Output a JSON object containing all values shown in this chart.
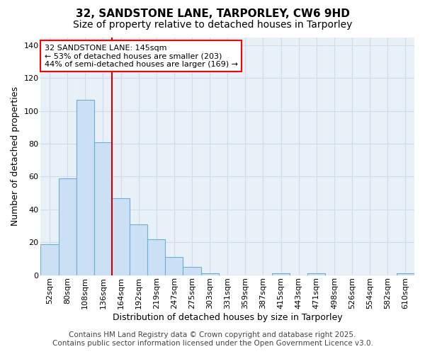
{
  "title": "32, SANDSTONE LANE, TARPORLEY, CW6 9HD",
  "subtitle": "Size of property relative to detached houses in Tarporley",
  "xlabel": "Distribution of detached houses by size in Tarporley",
  "ylabel": "Number of detached properties",
  "categories": [
    "52sqm",
    "80sqm",
    "108sqm",
    "136sqm",
    "164sqm",
    "192sqm",
    "219sqm",
    "247sqm",
    "275sqm",
    "303sqm",
    "331sqm",
    "359sqm",
    "387sqm",
    "415sqm",
    "443sqm",
    "471sqm",
    "498sqm",
    "526sqm",
    "554sqm",
    "582sqm",
    "610sqm"
  ],
  "values": [
    19,
    59,
    107,
    81,
    47,
    31,
    22,
    11,
    5,
    1,
    0,
    0,
    0,
    1,
    0,
    1,
    0,
    0,
    0,
    0,
    1
  ],
  "bar_color": "#cce0f5",
  "bar_edge_color": "#6aafd6",
  "grid_color": "#d0dce8",
  "annotation_box_text": "32 SANDSTONE LANE: 145sqm\n← 53% of detached houses are smaller (203)\n44% of semi-detached houses are larger (169) →",
  "red_line_color": "#cc0000",
  "red_line_x": 3.5,
  "footer_text": "Contains HM Land Registry data © Crown copyright and database right 2025.\nContains public sector information licensed under the Open Government Licence v3.0.",
  "fig_bg_color": "#ffffff",
  "plot_bg_color": "#e8f0f8",
  "ylim_max": 145,
  "title_fontsize": 11,
  "subtitle_fontsize": 10,
  "axis_label_fontsize": 9,
  "tick_fontsize": 8,
  "annotation_fontsize": 8,
  "footer_fontsize": 7.5
}
